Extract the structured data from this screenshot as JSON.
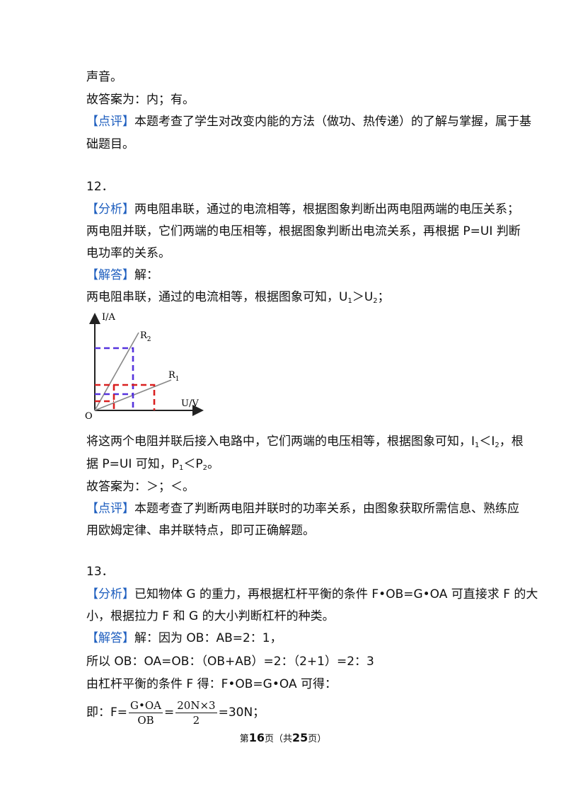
{
  "lines": {
    "l1": "声音。",
    "l2": "故答案为：内；有。",
    "p1_tag": "【点评】",
    "p1_text": "本题考查了学生对改变内能的方法（做功、热传递）的了解与掌握，属于基",
    "p1_text2": "础题目。",
    "q12": "12．",
    "a12_tag": "【分析】",
    "a12_text": "两电阻串联，通过的电流相等，根据图象判断出两电阻两端的电压关系；",
    "a12_text2": "两电阻并联，它们两端的电压相等，根据图象判断出电流关系，再根据 P=UI 判断",
    "a12_text3": "电功率的关系。",
    "j12_tag": "【解答】",
    "j12_text": "解：",
    "s12_a": "两电阻串联，通过的电流相等，根据图象可知，U",
    "s12_sub1": "1",
    "s12_b": "＞U",
    "s12_sub2": "2",
    "s12_c": "；",
    "b12_a": "将这两个电阻并联后接入电路中，它们两端的电压相等，根据图象可知，I",
    "b12_sub1": "1",
    "b12_b": "＜I",
    "b12_sub2": "2",
    "b12_c": "，根",
    "c12_a": "据 P=UI 可知，P",
    "c12_sub1": "1",
    "c12_b": "＜P",
    "c12_sub2": "2",
    "c12_c": "。",
    "ans12": "故答案为：＞；＜。",
    "p12_tag": "【点评】",
    "p12_text": "本题考查了判断两电阻并联时的功率关系，由图象获取所需信息、熟练应",
    "p12_text2": "用欧姆定律、串并联特点，即可正确解题。",
    "q13": "13．",
    "a13_tag": "【分析】",
    "a13_text": "已知物体 G 的重力，再根据杠杆平衡的条件 F•OB=G•OA 可直接求 F 的大",
    "a13_text2": "小，根据拉力 F 和 G 的大小判断杠杆的种类。",
    "j13_tag": "【解答】",
    "j13_text": "解：因为 OB：AB=2：1，",
    "s13_1": "所以 OB：OA=OB：（OB+AB）=2：（2+1）=2：3",
    "s13_2": "由杠杆平衡的条件 F 得：F•OB=G•OA 可得：",
    "eq_pre": "即：F=",
    "eq_num1": "G•OA",
    "eq_den1": "OB",
    "eq_eq": "=",
    "eq_num2": "20N×3",
    "eq_den2": "2",
    "eq_post": "=30N；"
  },
  "graph": {
    "y_label": "I/A",
    "x_label": "U/V",
    "origin": "O",
    "r2_label": "R",
    "r2_sub": "2",
    "r1_label": "R",
    "r1_sub": "1",
    "colors": {
      "axis": "#222222",
      "line": "#777777",
      "blue": "#5533dd",
      "red": "#d92020"
    }
  },
  "footer": {
    "pre": "第",
    "page": "16",
    "mid": "页（共",
    "total": "25",
    "post": "页）"
  }
}
